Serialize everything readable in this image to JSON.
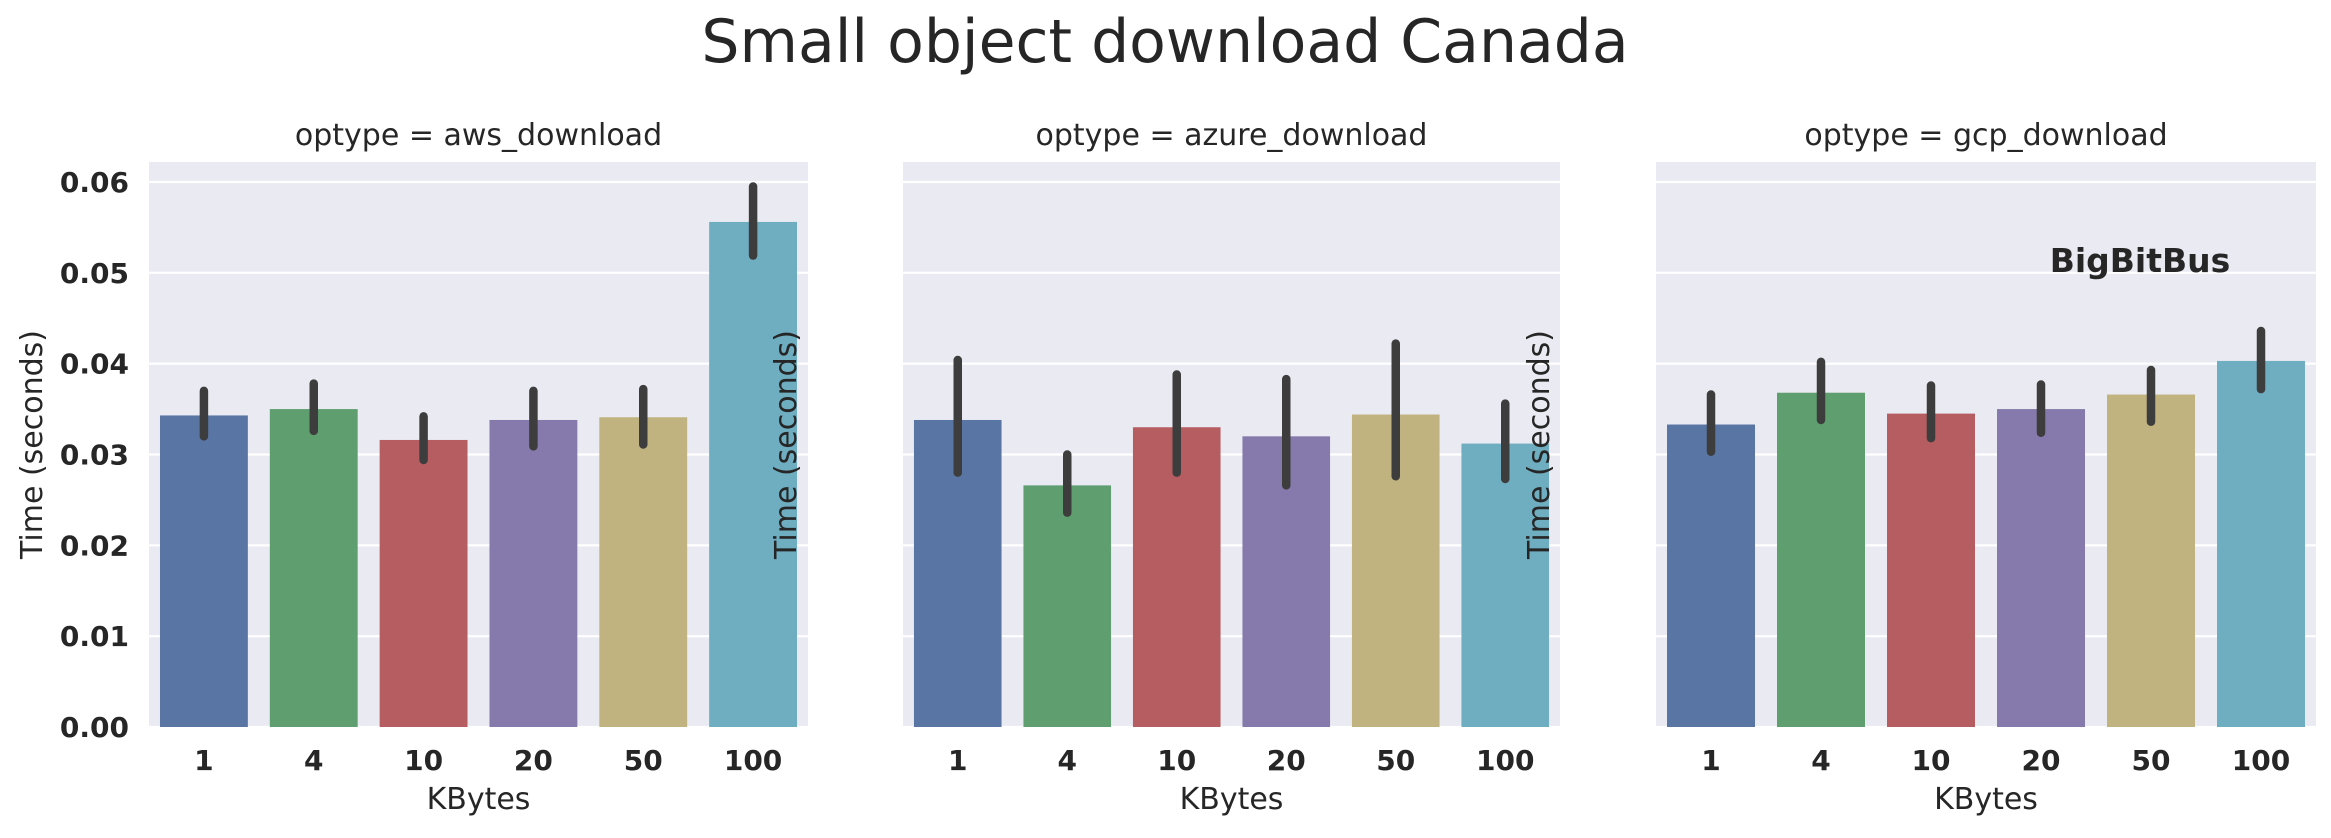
{
  "title": "Small object download Canada",
  "watermark": "BigBitBus",
  "chart_data": [
    {
      "type": "bar",
      "title": "optype = aws_download",
      "xlabel": "KBytes",
      "ylabel": "Time (seconds)",
      "categories": [
        "1",
        "4",
        "10",
        "20",
        "50",
        "100"
      ],
      "values": [
        0.0343,
        0.035,
        0.0316,
        0.0338,
        0.0341,
        0.0556
      ],
      "error_low": [
        0.032,
        0.0326,
        0.0294,
        0.0309,
        0.0311,
        0.0519
      ],
      "error_high": [
        0.037,
        0.0378,
        0.0342,
        0.037,
        0.0372,
        0.0595
      ],
      "ylim": [
        0,
        0.0622
      ],
      "yticks": [
        "0.00",
        "0.01",
        "0.02",
        "0.03",
        "0.04",
        "0.05",
        "0.06"
      ],
      "grid": true
    },
    {
      "type": "bar",
      "title": "optype = azure_download",
      "xlabel": "KBytes",
      "ylabel": "Time (seconds)",
      "categories": [
        "1",
        "4",
        "10",
        "20",
        "50",
        "100"
      ],
      "values": [
        0.0338,
        0.0266,
        0.033,
        0.032,
        0.0344,
        0.0312
      ],
      "error_low": [
        0.028,
        0.0236,
        0.028,
        0.0266,
        0.0276,
        0.0273
      ],
      "error_high": [
        0.0404,
        0.03,
        0.0388,
        0.0383,
        0.0422,
        0.0356
      ],
      "ylim": [
        0,
        0.0622
      ],
      "grid": true
    },
    {
      "type": "bar",
      "title": "optype = gcp_download",
      "xlabel": "KBytes",
      "ylabel": "Time (seconds)",
      "categories": [
        "1",
        "4",
        "10",
        "20",
        "50",
        "100"
      ],
      "values": [
        0.0333,
        0.0368,
        0.0345,
        0.035,
        0.0366,
        0.0403
      ],
      "error_low": [
        0.0303,
        0.0338,
        0.0318,
        0.0324,
        0.0336,
        0.0372
      ],
      "error_high": [
        0.0366,
        0.0402,
        0.0376,
        0.0377,
        0.0393,
        0.0436
      ],
      "ylim": [
        0,
        0.0622
      ],
      "grid": true
    }
  ],
  "colors": {
    "bars": [
      "#5975a4",
      "#5f9e6e",
      "#b55d60",
      "#857aab",
      "#c1b37f",
      "#6fadc0"
    ],
    "background": "#eaeaf2",
    "grid": "#ffffff",
    "errorbar": "#3d3d3d"
  }
}
